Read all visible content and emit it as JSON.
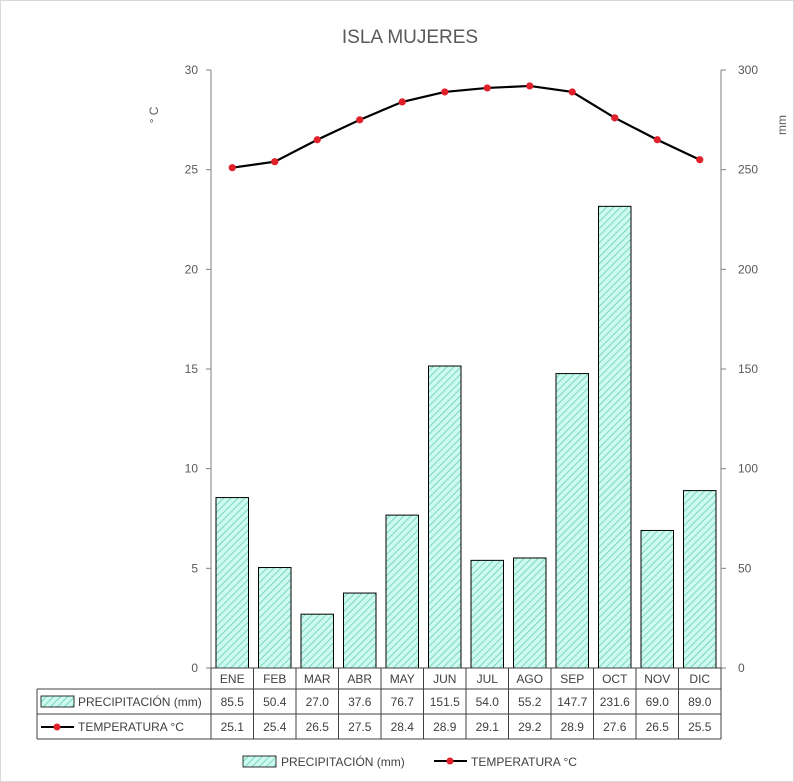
{
  "chart_data": {
    "type": "bar",
    "title": "ISLA MUJERES",
    "categories": [
      "ENE",
      "FEB",
      "MAR",
      "ABR",
      "MAY",
      "JUN",
      "JUL",
      "AGO",
      "SEP",
      "OCT",
      "NOV",
      "DIC"
    ],
    "series": [
      {
        "name": "PRECIPITACIÓN (mm)",
        "type": "bar",
        "axis": "right",
        "values": [
          85.5,
          50.4,
          27.0,
          37.6,
          76.7,
          151.5,
          54.0,
          55.2,
          147.7,
          231.6,
          69.0,
          89.0
        ],
        "labels": [
          "85.5",
          "50.4",
          "27.0",
          "37.6",
          "76.7",
          "151.5",
          "54.0",
          "55.2",
          "147.7",
          "231.6",
          "69.0",
          "89.0"
        ]
      },
      {
        "name": "TEMPERATURA °C",
        "type": "line",
        "axis": "left",
        "values": [
          25.1,
          25.4,
          26.5,
          27.5,
          28.4,
          28.9,
          29.1,
          29.2,
          28.9,
          27.6,
          26.5,
          25.5
        ],
        "labels": [
          "25.1",
          "25.4",
          "26.5",
          "27.5",
          "28.4",
          "28.9",
          "29.1",
          "29.2",
          "28.9",
          "27.6",
          "26.5",
          "25.5"
        ]
      }
    ],
    "ylabel_left": "° C",
    "ylabel_right": "mm",
    "ylim_left": [
      0,
      30
    ],
    "ylim_right": [
      0,
      300
    ],
    "yticks_left": [
      "0",
      "5",
      "10",
      "15",
      "20",
      "25",
      "30"
    ],
    "yticks_right": [
      "0",
      "50",
      "100",
      "150",
      "200",
      "250",
      "300"
    ],
    "grid": false,
    "legend_position": "bottom",
    "colors": {
      "bar_fill": "#ccfaf0",
      "bar_hatch": "#5cc9a8",
      "line": "#000000",
      "marker": "#e0202a",
      "axis": "#7f7f7f",
      "text": "#595959"
    }
  }
}
